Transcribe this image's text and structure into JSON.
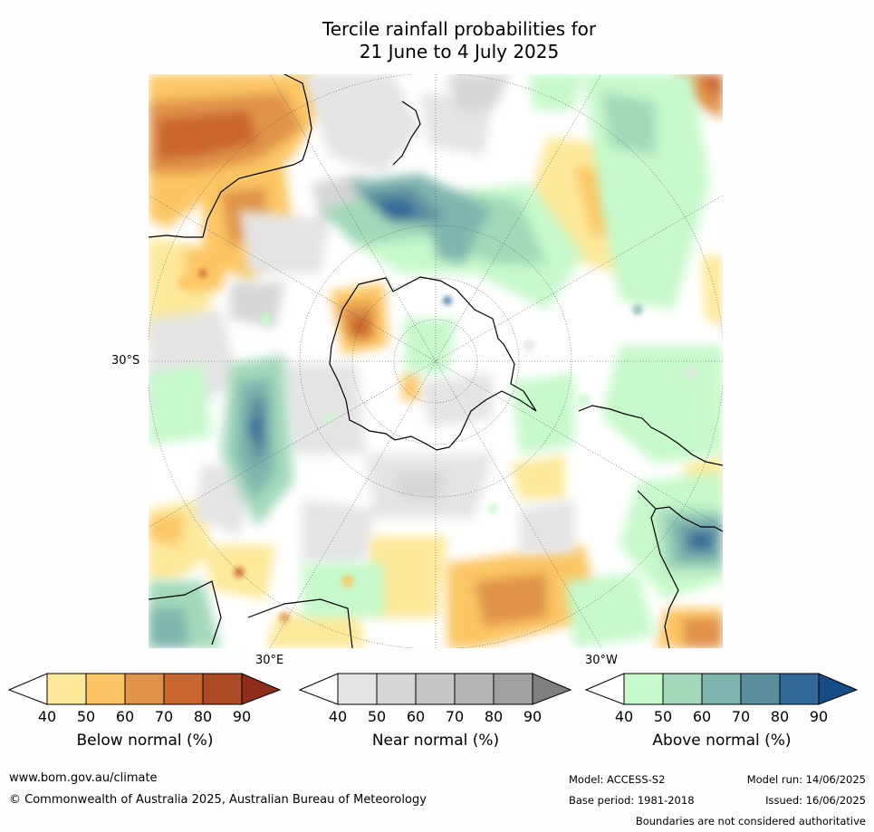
{
  "title": {
    "line1": "Tercile rainfall probabilities for",
    "line2": "21 June to 4 July 2025"
  },
  "map": {
    "projection": "south polar stereographic",
    "lat_label": "30°S",
    "lon_label_east": "30°E",
    "lon_label_west": "30°W"
  },
  "legends": [
    {
      "label": "Below normal (%)",
      "ticks": [
        "40",
        "50",
        "60",
        "70",
        "80",
        "90"
      ],
      "colors": [
        "#ffffff",
        "#fde99a",
        "#fcc664",
        "#e0934a",
        "#c9652f",
        "#ad4a26",
        "#8e2e1a"
      ]
    },
    {
      "label": "Near normal (%)",
      "ticks": [
        "40",
        "50",
        "60",
        "70",
        "80",
        "90"
      ],
      "colors": [
        "#ffffff",
        "#e4e4e4",
        "#d6d6d6",
        "#c6c6c6",
        "#b4b4b4",
        "#a1a1a1",
        "#7f7f7f"
      ]
    },
    {
      "label": "Above normal (%)",
      "ticks": [
        "40",
        "50",
        "60",
        "70",
        "80",
        "90"
      ],
      "colors": [
        "#ffffff",
        "#c6f9cb",
        "#a3d9ba",
        "#7fb5ae",
        "#5b8f9e",
        "#33689a",
        "#164d85"
      ]
    }
  ],
  "footer": {
    "website": "www.bom.gov.au/climate",
    "copyright": "© Commonwealth of Australia 2025, Australian Bureau of Meteorology",
    "model": "Model: ACCESS-S2",
    "base_period": "Base period: 1981-2018",
    "model_run": "Model run: 14/06/2025",
    "issued": "Issued: 16/06/2025",
    "disclaimer": "Boundaries are not considered authoritative"
  }
}
